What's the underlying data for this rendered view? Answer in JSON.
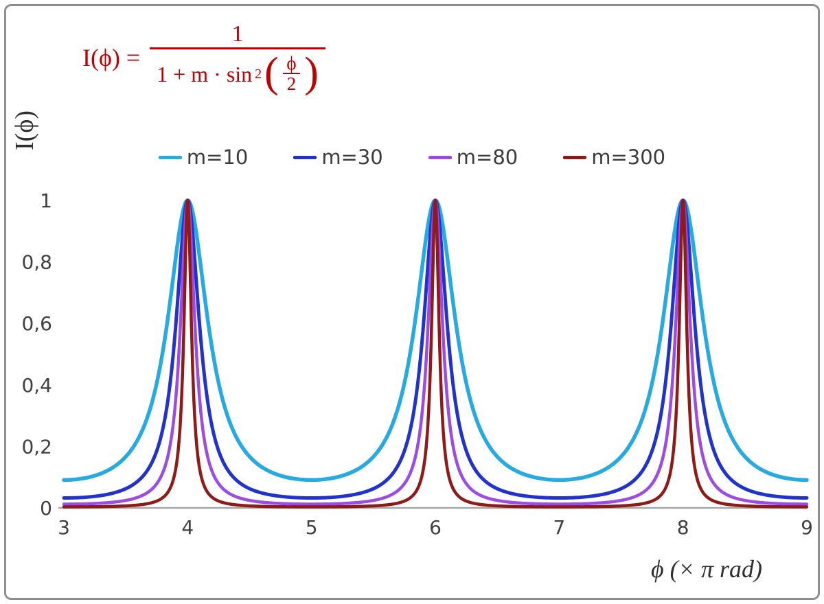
{
  "formula": {
    "lhs": "I(ϕ) =",
    "numerator": "1",
    "den_main": "1 + m · sin",
    "den_sup": "2",
    "open_paren": "(",
    "close_paren": ")",
    "inner_num": "ϕ",
    "inner_den": "2",
    "color": "#C00000"
  },
  "chart_data": {
    "type": "line",
    "title": "",
    "formula": "I(ϕ) = 1 / (1 + m·sin²(ϕ/2))",
    "xlabel": "ϕ  (× π rad)",
    "ylabel": "I(ϕ)",
    "xlim": [
      3,
      9
    ],
    "ylim": [
      0,
      1
    ],
    "x_ticks": [
      3,
      4,
      5,
      6,
      7,
      8,
      9
    ],
    "x_tick_labels": [
      "3",
      "4",
      "5",
      "6",
      "7",
      "8",
      "9"
    ],
    "y_ticks": [
      0,
      0.2,
      0.4,
      0.6,
      0.8,
      1
    ],
    "y_tick_labels": [
      "0",
      "0,2",
      "0,4",
      "0,6",
      "0,8",
      "1"
    ],
    "grid": false,
    "legend_position": "top-center",
    "axis_color": "#a6a6a6",
    "tick_color": "#404040",
    "function_note": "y = 1 / (1 + m·sin²(x·π/2)) with x in units of π rad; peaks of height 1 at x = 4, 6, 8",
    "peaks_x": [
      4,
      6,
      8
    ],
    "peak_value": 1,
    "series": [
      {
        "name": "m=10",
        "m": 10,
        "color": "#27AAE1",
        "width": 5.5,
        "min_value": 0.091
      },
      {
        "name": "m=30",
        "m": 30,
        "color": "#2133CC",
        "width": 5,
        "min_value": 0.032
      },
      {
        "name": "m=80",
        "m": 80,
        "color": "#9C4BE4",
        "width": 4.5,
        "min_value": 0.012
      },
      {
        "name": "m=300",
        "m": 300,
        "color": "#8E1B17",
        "width": 4.5,
        "min_value": 0.003
      }
    ]
  }
}
